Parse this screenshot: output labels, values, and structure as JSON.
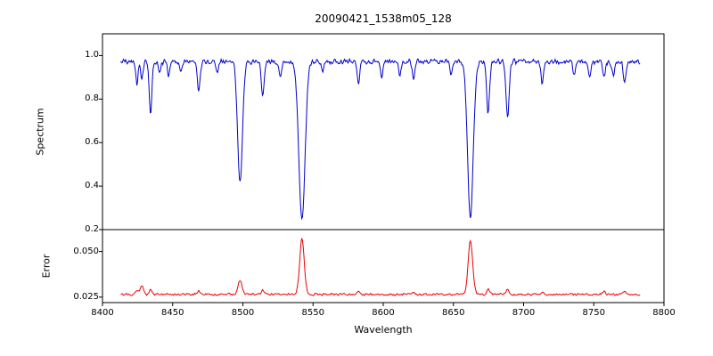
{
  "figure": {
    "title": "20090421_1538m05_128",
    "xlabel": "Wavelength",
    "background": "#ffffff",
    "xlim": [
      8400,
      8800
    ],
    "xticks": [
      8400,
      8450,
      8500,
      8550,
      8600,
      8650,
      8700,
      8750,
      8800
    ]
  },
  "chart_data": [
    {
      "type": "line",
      "name": "spectrum",
      "ylabel": "Spectrum",
      "color": "#0000cc",
      "seed": 42,
      "ylim": [
        0.2,
        1.1
      ],
      "yticks": [
        0.2,
        0.4,
        0.6,
        0.8,
        1.0
      ],
      "ytick_decimals": 1,
      "show_xtick_labels": false,
      "legend": "none",
      "grid": false,
      "series": {
        "x_start": 8413,
        "x_end": 8783,
        "x_step": 0.5,
        "baseline": 0.972,
        "noise": 0.014,
        "features": [
          {
            "center": 8424.5,
            "amp": -0.11,
            "sigma": 0.8
          },
          {
            "center": 8428.0,
            "amp": -0.09,
            "sigma": 0.8
          },
          {
            "center": 8434.2,
            "amp": -0.25,
            "sigma": 0.9
          },
          {
            "center": 8440.5,
            "amp": -0.06,
            "sigma": 0.8
          },
          {
            "center": 8447.0,
            "amp": -0.07,
            "sigma": 0.8
          },
          {
            "center": 8456.0,
            "amp": -0.05,
            "sigma": 0.8
          },
          {
            "center": 8468.5,
            "amp": -0.13,
            "sigma": 1.0
          },
          {
            "center": 8482.0,
            "amp": -0.05,
            "sigma": 0.8
          },
          {
            "center": 8498.0,
            "amp": -0.56,
            "sigma": 1.7
          },
          {
            "center": 8514.1,
            "amp": -0.15,
            "sigma": 1.0
          },
          {
            "center": 8526.7,
            "amp": -0.07,
            "sigma": 0.9
          },
          {
            "center": 8542.1,
            "amp": -0.73,
            "sigma": 2.2
          },
          {
            "center": 8556.8,
            "amp": -0.05,
            "sigma": 0.8
          },
          {
            "center": 8582.3,
            "amp": -0.1,
            "sigma": 0.9
          },
          {
            "center": 8598.8,
            "amp": -0.07,
            "sigma": 0.9
          },
          {
            "center": 8611.8,
            "amp": -0.06,
            "sigma": 0.9
          },
          {
            "center": 8621.6,
            "amp": -0.07,
            "sigma": 0.9
          },
          {
            "center": 8648.5,
            "amp": -0.06,
            "sigma": 0.9
          },
          {
            "center": 8662.1,
            "amp": -0.72,
            "sigma": 2.0
          },
          {
            "center": 8674.7,
            "amp": -0.24,
            "sigma": 1.0
          },
          {
            "center": 8688.6,
            "amp": -0.25,
            "sigma": 1.1
          },
          {
            "center": 8713.2,
            "amp": -0.1,
            "sigma": 0.9
          },
          {
            "center": 8736.0,
            "amp": -0.06,
            "sigma": 0.9
          },
          {
            "center": 8747.0,
            "amp": -0.07,
            "sigma": 0.9
          },
          {
            "center": 8757.2,
            "amp": -0.08,
            "sigma": 0.9
          },
          {
            "center": 8764.0,
            "amp": -0.07,
            "sigma": 0.9
          },
          {
            "center": 8772.0,
            "amp": -0.1,
            "sigma": 0.9
          }
        ]
      }
    },
    {
      "type": "line",
      "name": "error",
      "ylabel": "Error",
      "color": "#ee0000",
      "seed": 7,
      "ylim": [
        0.022,
        0.062
      ],
      "yticks": [
        0.025,
        0.05
      ],
      "ytick_decimals": 3,
      "show_xtick_labels": true,
      "legend": "none",
      "grid": false,
      "series": {
        "x_start": 8413,
        "x_end": 8783,
        "x_step": 0.5,
        "baseline": 0.0265,
        "noise": 0.0007,
        "features": [
          {
            "center": 8424.5,
            "amp": 0.002,
            "sigma": 1.2
          },
          {
            "center": 8428.0,
            "amp": 0.005,
            "sigma": 1.0
          },
          {
            "center": 8434.2,
            "amp": 0.0025,
            "sigma": 1.0
          },
          {
            "center": 8468.5,
            "amp": 0.0018,
            "sigma": 1.0
          },
          {
            "center": 8498.0,
            "amp": 0.0075,
            "sigma": 1.4
          },
          {
            "center": 8514.1,
            "amp": 0.002,
            "sigma": 1.0
          },
          {
            "center": 8542.1,
            "amp": 0.0305,
            "sigma": 1.6
          },
          {
            "center": 8582.3,
            "amp": 0.0014,
            "sigma": 1.0
          },
          {
            "center": 8621.6,
            "amp": 0.0012,
            "sigma": 1.0
          },
          {
            "center": 8662.1,
            "amp": 0.0295,
            "sigma": 1.6
          },
          {
            "center": 8674.7,
            "amp": 0.0028,
            "sigma": 1.0
          },
          {
            "center": 8688.6,
            "amp": 0.0028,
            "sigma": 1.0
          },
          {
            "center": 8713.2,
            "amp": 0.0014,
            "sigma": 1.0
          },
          {
            "center": 8757.2,
            "amp": 0.0016,
            "sigma": 1.0
          },
          {
            "center": 8772.0,
            "amp": 0.0018,
            "sigma": 1.0
          }
        ]
      }
    }
  ]
}
